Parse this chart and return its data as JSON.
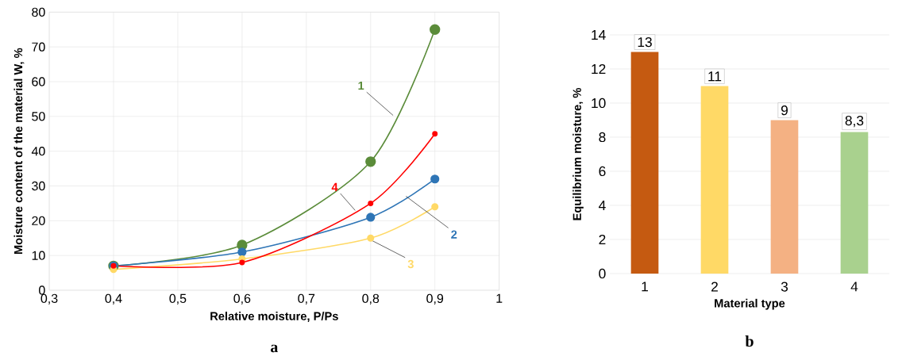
{
  "chart_data": [
    {
      "type": "line",
      "xlabel": "Relative moisture, P/Ps",
      "ylabel": "Moisture content of the material W, %",
      "annotations": [
        "a"
      ],
      "x": [
        0.4,
        0.6,
        0.8,
        0.9
      ],
      "xlim": [
        0.3,
        1
      ],
      "xticks": [
        {
          "value": 0.3,
          "label": "0,3"
        },
        {
          "value": 0.4,
          "label": "0,4"
        },
        {
          "value": 0.5,
          "label": "0,5"
        },
        {
          "value": 0.6,
          "label": "0,6"
        },
        {
          "value": 0.7,
          "label": "0,7"
        },
        {
          "value": 0.8,
          "label": "0,8"
        },
        {
          "value": 0.9,
          "label": "0,9"
        },
        1
      ],
      "ylim": [
        0,
        80
      ],
      "yticks": [
        0,
        10,
        20,
        30,
        40,
        50,
        60,
        70,
        80
      ],
      "grid": true,
      "marker": "circle",
      "series": [
        {
          "name": "1",
          "color": "#5b8c3a",
          "values": [
            7,
            13,
            37,
            75
          ]
        },
        {
          "name": "2",
          "color": "#2e75b6",
          "values": [
            7,
            11,
            21,
            32
          ]
        },
        {
          "name": "3",
          "color": "#ffd966",
          "values": [
            6,
            9,
            15,
            24
          ]
        },
        {
          "name": "4",
          "color": "#ff0000",
          "values": [
            7,
            8,
            25,
            45
          ]
        }
      ]
    },
    {
      "type": "bar",
      "xlabel": "Material type",
      "ylabel": "Equilibrium moisture, %",
      "annotations": [
        "b"
      ],
      "categories": [
        "1",
        "2",
        "3",
        "4"
      ],
      "values": [
        13,
        11,
        9,
        8.3
      ],
      "colors": [
        "#c55a11",
        "#ffd966",
        "#f4b183",
        "#a9d18e"
      ],
      "value_labels": [
        "13",
        "11",
        "9",
        "8,3"
      ],
      "ylim": [
        0,
        14
      ],
      "yticks": [
        0,
        2,
        4,
        6,
        8,
        10,
        12,
        14
      ],
      "grid": "y"
    }
  ]
}
